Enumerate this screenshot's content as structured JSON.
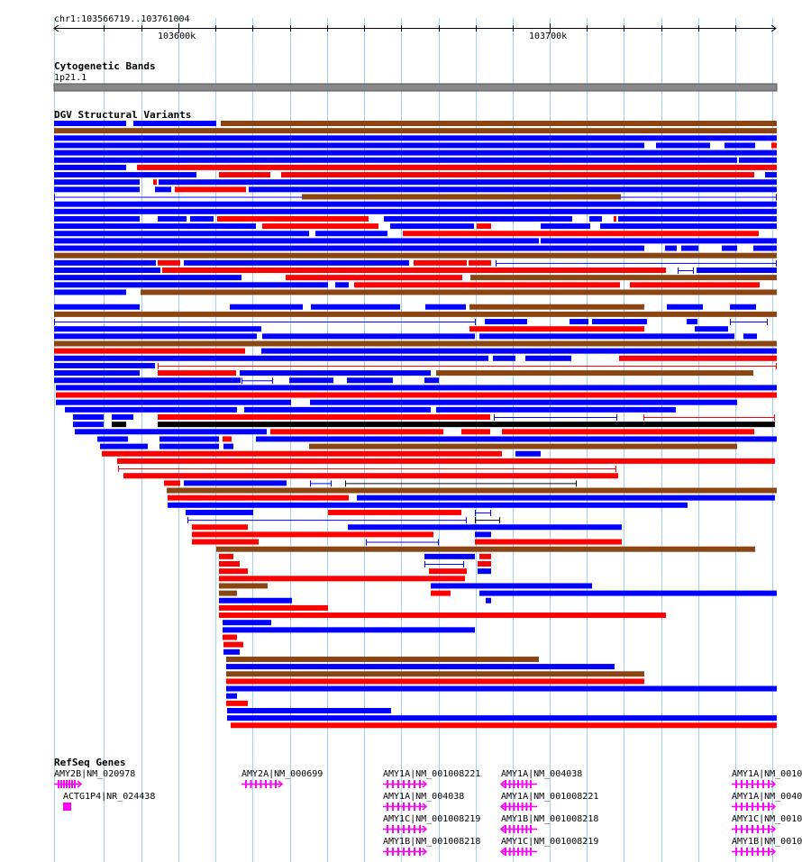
{
  "location": "chr1:103566719..103761004",
  "ruler": {
    "ticks": [
      {
        "label": "103600k",
        "bp": 103600000
      },
      {
        "label": "103700k",
        "bp": 103700000
      }
    ]
  },
  "tracks": {
    "cytoband": {
      "title": "Cytogenetic Bands",
      "band": "1p21.1"
    },
    "dgv": {
      "title": "DGV Structural Variants"
    },
    "refseq": {
      "title": "RefSeq Genes"
    }
  },
  "colors": {
    "loss": "#ff0000",
    "gain": "#0000ff",
    "both": "#8b4513",
    "inversion": "#000000",
    "gene": "#ff00ff",
    "grid": "#9ed3ee",
    "band": "#888888"
  },
  "genes": [
    {
      "label": "AMY2B|NM_020978",
      "strand": "+"
    },
    {
      "label": "ACTG1P4|NR_024438",
      "strand": ""
    },
    {
      "label": "AMY2A|NM_000699",
      "strand": "+"
    },
    {
      "label": "AMY1A|NM_001008221",
      "strand": "+"
    },
    {
      "label": "AMY1A|NM_004038",
      "strand": "+"
    },
    {
      "label": "AMY1C|NM_001008219",
      "strand": "+"
    },
    {
      "label": "AMY1B|NM_001008218",
      "strand": "+"
    },
    {
      "label": "AMY1A|NM_004038",
      "strand": "-"
    },
    {
      "label": "AMY1A|NM_001008221",
      "strand": "-"
    },
    {
      "label": "AMY1B|NM_001008218",
      "strand": "-"
    },
    {
      "label": "AMY1C|NM_001008219",
      "strand": "-"
    },
    {
      "label": "AMY1A|NM_0010",
      "strand": "+"
    },
    {
      "label": "AMY1A|NM_0040",
      "strand": "+"
    },
    {
      "label": "AMY1C|NM_0010",
      "strand": "+"
    },
    {
      "label": "AMY1B|NM_0010",
      "strand": "+"
    }
  ]
}
